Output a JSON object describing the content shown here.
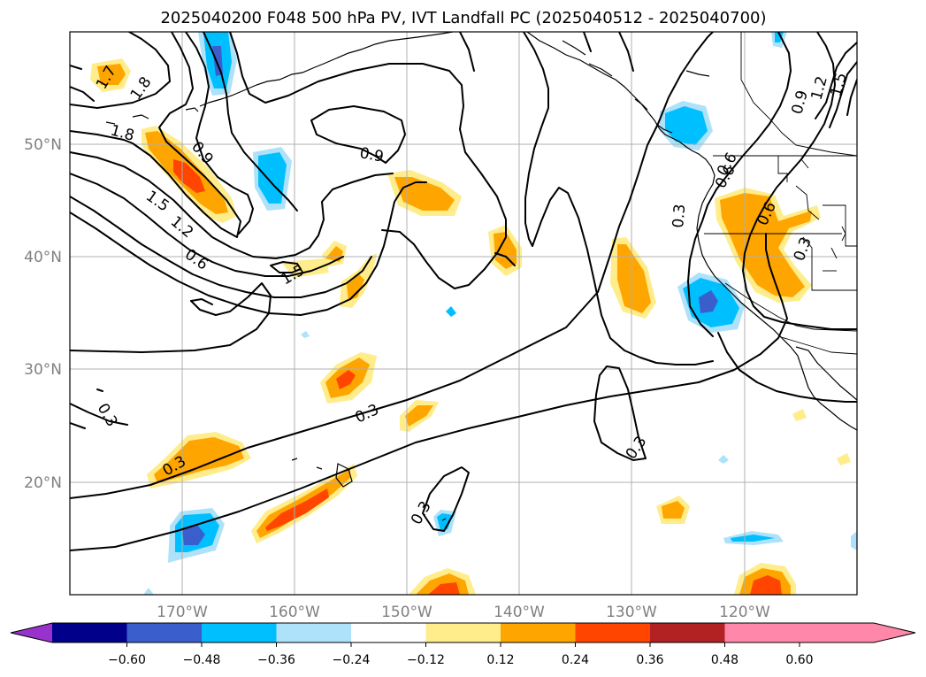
{
  "title": "2025040200 F048 500 hPa PV, IVT Landfall PC (2025040512 - 2025040700)",
  "map": {
    "lon_range": [
      -180,
      -110
    ],
    "lat_range": [
      10,
      60
    ],
    "lat_labels": [
      "20°N",
      "30°N",
      "40°N",
      "50°N"
    ],
    "lon_labels": [
      "170°W",
      "160°W",
      "150°W",
      "140°W",
      "130°W",
      "120°W"
    ],
    "grid_color": "#b0b0b0"
  },
  "colorbar": {
    "tick_labels": [
      "−0.60",
      "−0.48",
      "−0.36",
      "−0.24",
      "−0.12",
      "0.12",
      "0.24",
      "0.36",
      "0.48",
      "0.60"
    ],
    "levels": [
      -0.6,
      -0.48,
      -0.36,
      -0.24,
      -0.12,
      0.12,
      0.24,
      0.36,
      0.48,
      0.6
    ],
    "colors": [
      "#9932cc",
      "#00008b",
      "#3a5fcd",
      "#00bfff",
      "#aee1fa",
      "#ffffff",
      "#ffec8b",
      "#ffa500",
      "#ff4500",
      "#b22222",
      "#ff88aa"
    ],
    "extend": "both"
  },
  "pv_contour_labels": [
    "0.3",
    "0.3",
    "0.3",
    "0.3",
    "0.3",
    "0.3",
    "0.3",
    "0.6",
    "0.6",
    "0.6",
    "0.6",
    "0.9",
    "0.9",
    "0.9",
    "1.2",
    "1.2",
    "1.5",
    "1.5",
    "1.5",
    "1.8",
    "1.8",
    "1.7"
  ],
  "fill_colors": {
    "pos1": "#ffec8b",
    "pos2": "#ffa500",
    "pos3": "#ff4500",
    "neg1": "#aee1fa",
    "neg2": "#00bfff",
    "neg3": "#3a5fcd"
  }
}
